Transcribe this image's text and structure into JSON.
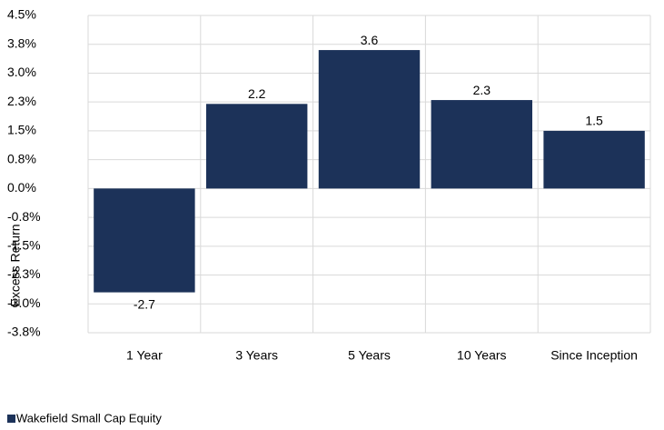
{
  "chart_data": {
    "type": "bar",
    "y_label": "Excess Return",
    "categories": [
      "1 Year",
      "3 Years",
      "5 Years",
      "10 Years",
      "Since Inception"
    ],
    "series": [
      {
        "name": "Wakefield Small Cap Equity",
        "color": "#1c3259",
        "values": [
          -2.7,
          2.2,
          3.6,
          2.3,
          1.5
        ]
      }
    ],
    "ylim": [
      -3.75,
      4.5
    ],
    "yticks": [
      {
        "value": 4.5,
        "label": "4.5%"
      },
      {
        "value": 3.75,
        "label": "3.8%"
      },
      {
        "value": 3.0,
        "label": "3.0%"
      },
      {
        "value": 2.25,
        "label": "2.3%"
      },
      {
        "value": 1.5,
        "label": "1.5%"
      },
      {
        "value": 0.75,
        "label": "0.8%"
      },
      {
        "value": 0,
        "label": "0.0%"
      },
      {
        "value": -0.75,
        "label": "-0.8%"
      },
      {
        "value": -1.5,
        "label": "-1.5%"
      },
      {
        "value": -2.25,
        "label": "-2.3%"
      },
      {
        "value": -3.0,
        "label": "-3.0%"
      },
      {
        "value": -3.75,
        "label": "-3.8%"
      }
    ],
    "grid": true,
    "legend": "bottom-left"
  }
}
